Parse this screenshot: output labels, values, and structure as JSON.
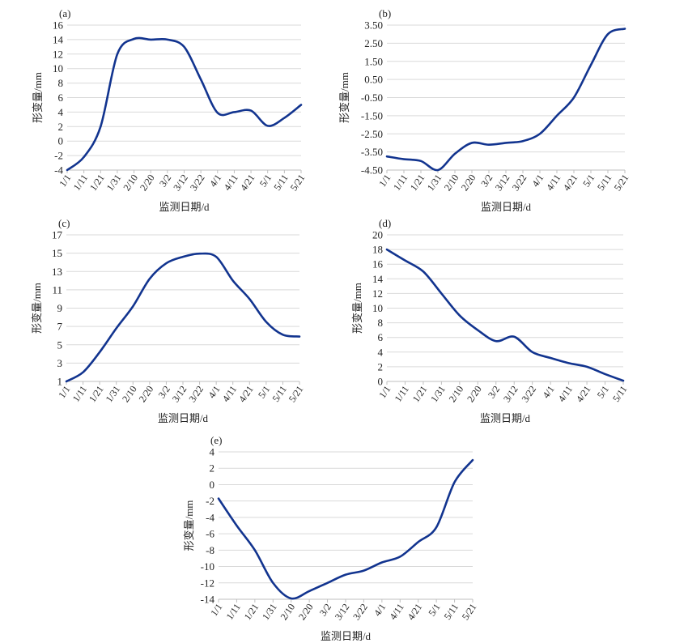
{
  "colors": {
    "line": "#12348f"
  },
  "chart_data": [
    {
      "type": "line",
      "panel": "(a)",
      "xlabel": "监测日期/d",
      "ylabel": "形变量/mm",
      "categories": [
        "1/1",
        "1/11",
        "1/21",
        "1/31",
        "2/10",
        "2/20",
        "3/2",
        "3/12",
        "3/22",
        "4/1",
        "4/11",
        "4/21",
        "5/1",
        "5/11",
        "5/21"
      ],
      "values": [
        -4,
        -2.2,
        2,
        12,
        14.1,
        14,
        14,
        13,
        8.5,
        3.9,
        4,
        4.2,
        2.1,
        3.2,
        5
      ],
      "ylim": [
        -4,
        16
      ],
      "yticks": [
        "-4",
        "-2",
        "0",
        "2",
        "4",
        "6",
        "8",
        "10",
        "12",
        "14",
        "16"
      ],
      "grid": true
    },
    {
      "type": "line",
      "panel": "(b)",
      "xlabel": "监测日期/d",
      "ylabel": "形变量/mm",
      "categories": [
        "1/1",
        "1/11",
        "1/21",
        "1/31",
        "2/10",
        "2/20",
        "3/2",
        "3/12",
        "3/22",
        "4/1",
        "4/11",
        "4/21",
        "5/1",
        "5/11",
        "5/21"
      ],
      "values": [
        -3.75,
        -3.9,
        -4.0,
        -4.5,
        -3.6,
        -3.0,
        -3.1,
        -3.0,
        -2.9,
        -2.5,
        -1.5,
        -0.5,
        1.3,
        3.0,
        3.3
      ],
      "ylim": [
        -4.5,
        3.5
      ],
      "yticks": [
        "-4.50",
        "-3.50",
        "-2.50",
        "-1.50",
        "-0.50",
        "0.50",
        "1.50",
        "2.50",
        "3.50"
      ],
      "grid": true
    },
    {
      "type": "line",
      "panel": "(c)",
      "xlabel": "监测日期/d",
      "ylabel": "形变量/mm",
      "categories": [
        "1/1",
        "1/11",
        "1/21",
        "1/31",
        "2/10",
        "2/20",
        "3/2",
        "3/12",
        "3/22",
        "4/1",
        "4/11",
        "4/21",
        "5/1",
        "5/11",
        "5/21"
      ],
      "values": [
        1,
        2,
        4.2,
        6.8,
        9.2,
        12.2,
        13.9,
        14.6,
        14.95,
        14.6,
        12,
        10,
        7.5,
        6.1,
        5.9
      ],
      "ylim": [
        1,
        17
      ],
      "yticks": [
        "1",
        "3",
        "5",
        "7",
        "9",
        "11",
        "13",
        "15",
        "17"
      ],
      "grid": true
    },
    {
      "type": "line",
      "panel": "(d)",
      "xlabel": "监测日期/d",
      "ylabel": "形变量/mm",
      "categories": [
        "1/1",
        "1/11",
        "1/21",
        "1/31",
        "2/10",
        "2/20",
        "3/2",
        "3/12",
        "3/22",
        "4/1",
        "4/11",
        "4/21",
        "5/1",
        "5/11"
      ],
      "values": [
        18,
        16.5,
        15,
        12,
        9,
        7,
        5.5,
        6.1,
        4,
        3.2,
        2.5,
        2,
        1,
        0.1
      ],
      "ylim": [
        0,
        20
      ],
      "yticks": [
        "0",
        "2",
        "4",
        "6",
        "8",
        "10",
        "12",
        "14",
        "16",
        "18",
        "20"
      ],
      "grid": true
    },
    {
      "type": "line",
      "panel": "(e)",
      "xlabel": "监测日期/d",
      "ylabel": "形变量/mm",
      "categories": [
        "1/1",
        "1/11",
        "1/21",
        "1/31",
        "2/10",
        "2/20",
        "3/2",
        "3/12",
        "3/22",
        "4/1",
        "4/11",
        "4/21",
        "5/1",
        "5/11",
        "5/21"
      ],
      "values": [
        -1.7,
        -5,
        -8,
        -12,
        -13.9,
        -13,
        -12,
        -11,
        -10.5,
        -9.5,
        -8.8,
        -7,
        -5.2,
        0.3,
        3
      ],
      "ylim": [
        -14,
        4
      ],
      "yticks": [
        "-14",
        "-12",
        "-10",
        "-8",
        "-6",
        "-4",
        "-2",
        "0",
        "2",
        "4"
      ],
      "grid": true
    }
  ]
}
